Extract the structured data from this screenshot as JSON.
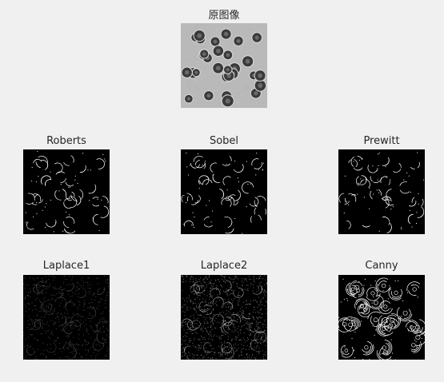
{
  "figure": {
    "background": "#f0f0f0",
    "panels": [
      {
        "id": "original",
        "title": "原图像",
        "style": "original"
      },
      {
        "id": "roberts",
        "title": "Roberts",
        "style": "edge-sparse"
      },
      {
        "id": "sobel",
        "title": "Sobel",
        "style": "edge-sparse"
      },
      {
        "id": "prewitt",
        "title": "Prewitt",
        "style": "edge-sparse"
      },
      {
        "id": "laplace1",
        "title": "Laplace1",
        "style": "edge-faint"
      },
      {
        "id": "laplace2",
        "title": "Laplace2",
        "style": "edge-noisy"
      },
      {
        "id": "canny",
        "title": "Canny",
        "style": "edge-dense"
      }
    ]
  }
}
